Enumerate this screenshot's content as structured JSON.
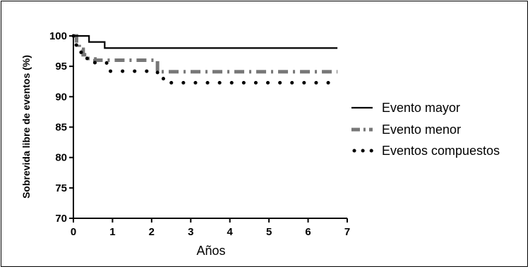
{
  "chart_data": {
    "type": "line",
    "title": "",
    "xlabel": "Años",
    "ylabel": "Sobrevida libre de eventos (%)",
    "xlim": [
      0,
      7
    ],
    "ylim": [
      70,
      100
    ],
    "x_ticks": [
      0,
      1,
      2,
      3,
      4,
      5,
      6,
      7
    ],
    "y_ticks": [
      70,
      75,
      80,
      85,
      90,
      95,
      100
    ],
    "grid": false,
    "legend_position": "right",
    "series": [
      {
        "name": "Evento mayor",
        "color": "#000000",
        "style": "solid",
        "step": true,
        "x": [
          0,
          0.4,
          0.8,
          6.75
        ],
        "y": [
          100,
          99,
          98,
          98
        ]
      },
      {
        "name": "Evento menor",
        "color": "#777777",
        "style": "dash-dot",
        "step": true,
        "x": [
          0,
          0.08,
          0.15,
          0.25,
          0.35,
          0.45,
          0.55,
          2.05,
          2.15,
          6.75
        ],
        "y": [
          100,
          98.8,
          97.8,
          96.9,
          96.3,
          96.2,
          96,
          96,
          94.1,
          94.1
        ]
      },
      {
        "name": "Eventos compuestos",
        "color": "#000000",
        "style": "dotted",
        "step": true,
        "x": [
          0,
          0.05,
          0.15,
          0.25,
          0.35,
          0.4,
          0.85,
          2.05,
          2.15,
          2.3,
          6.75
        ],
        "y": [
          100,
          98.5,
          97.3,
          96.5,
          95.7,
          95.6,
          94.2,
          94.2,
          93,
          92.3,
          92.3
        ]
      }
    ]
  }
}
